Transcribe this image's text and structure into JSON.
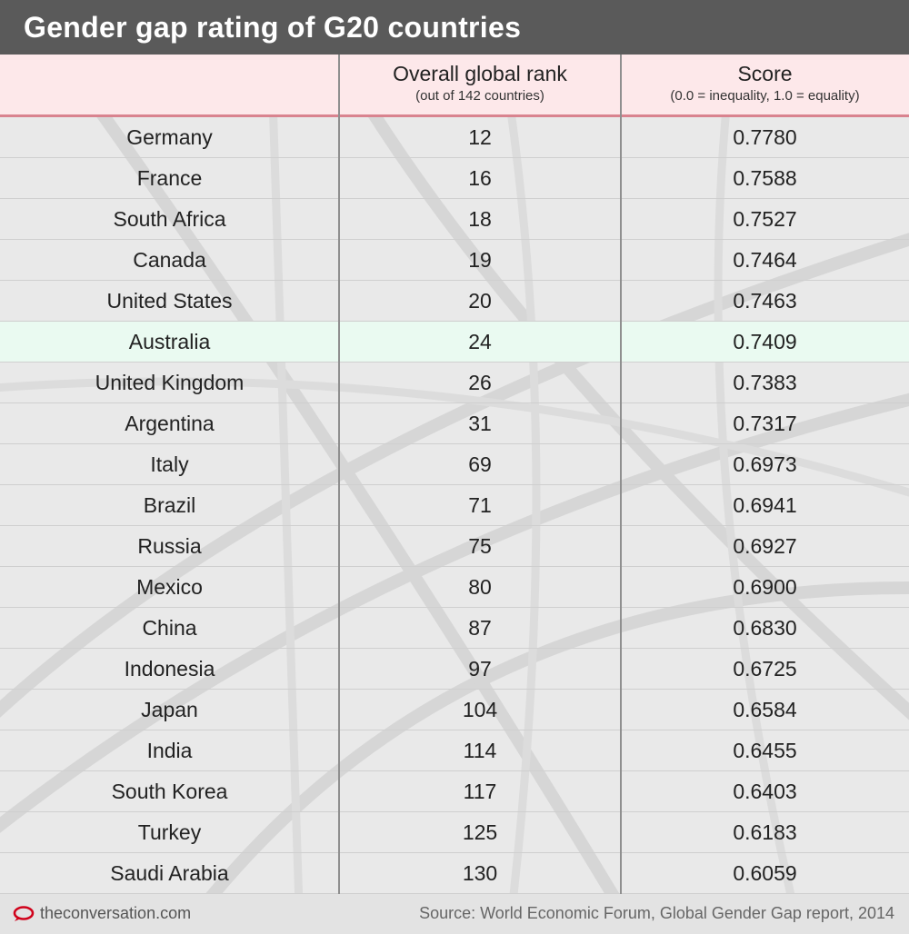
{
  "title": "Gender gap rating of G20 countries",
  "header": {
    "country": "",
    "rank": "Overall global rank",
    "rank_sub": "(out of 142 countries)",
    "score": "Score",
    "score_sub": "(0.0 = inequality, 1.0 = equality)"
  },
  "highlight_color": "#eafaf1",
  "header_color": "#fde8ea",
  "accent_line_color": "#d9838f",
  "chart_data": {
    "type": "table",
    "title": "Gender gap rating of G20 countries",
    "columns": [
      "",
      "Overall global rank",
      "Score"
    ],
    "highlighted_row": "Australia",
    "rows": [
      {
        "country": "Germany",
        "rank": "12",
        "score": "0.7780"
      },
      {
        "country": "France",
        "rank": "16",
        "score": "0.7588"
      },
      {
        "country": "South Africa",
        "rank": "18",
        "score": "0.7527"
      },
      {
        "country": "Canada",
        "rank": "19",
        "score": "0.7464"
      },
      {
        "country": "United States",
        "rank": "20",
        "score": "0.7463"
      },
      {
        "country": "Australia",
        "rank": "24",
        "score": "0.7409"
      },
      {
        "country": "United Kingdom",
        "rank": "26",
        "score": "0.7383"
      },
      {
        "country": "Argentina",
        "rank": "31",
        "score": "0.7317"
      },
      {
        "country": "Italy",
        "rank": "69",
        "score": "0.6973"
      },
      {
        "country": "Brazil",
        "rank": "71",
        "score": "0.6941"
      },
      {
        "country": "Russia",
        "rank": "75",
        "score": "0.6927"
      },
      {
        "country": "Mexico",
        "rank": "80",
        "score": "0.6900"
      },
      {
        "country": "China",
        "rank": "87",
        "score": "0.6830"
      },
      {
        "country": "Indonesia",
        "rank": "97",
        "score": "0.6725"
      },
      {
        "country": "Japan",
        "rank": "104",
        "score": "0.6584"
      },
      {
        "country": "India",
        "rank": "114",
        "score": "0.6455"
      },
      {
        "country": "South Korea",
        "rank": "117",
        "score": "0.6403"
      },
      {
        "country": "Turkey",
        "rank": "125",
        "score": "0.6183"
      },
      {
        "country": "Saudi Arabia",
        "rank": "130",
        "score": "0.6059"
      }
    ]
  },
  "footer": {
    "site": "theconversation.com",
    "logo_icon": "speech-bubble-icon",
    "source": "Source: World Economic Forum, Global Gender Gap report, 2014"
  }
}
